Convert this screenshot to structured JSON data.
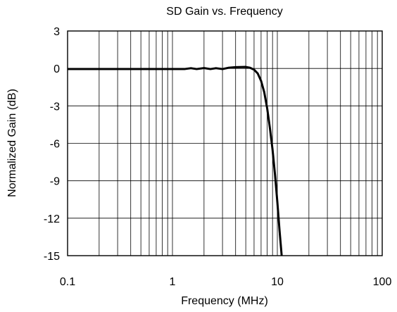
{
  "chart_data": {
    "type": "line",
    "title": "SD Gain vs. Frequency",
    "xlabel": "Frequency (MHz)",
    "ylabel": "Normalized Gain (dB)",
    "xscale": "log",
    "xlim": [
      0.1,
      100
    ],
    "ylim": [
      -15,
      3
    ],
    "grid": true,
    "x_ticks": [
      "0.1",
      "1",
      "10",
      "100"
    ],
    "y_ticks": [
      "3",
      "0",
      "-3",
      "-6",
      "-9",
      "-12",
      "-15"
    ],
    "series": [
      {
        "x": [
          0.1,
          0.2,
          0.5,
          1.0,
          1.3,
          1.5,
          1.7,
          2.0,
          2.3,
          2.6,
          3.0,
          3.4,
          4.0,
          5.0,
          5.5,
          6.0,
          6.5,
          7.0,
          7.5,
          8.0,
          8.5,
          9.0,
          9.5,
          10.0,
          10.5,
          11.0
        ],
        "y": [
          -0.05,
          -0.05,
          -0.05,
          -0.05,
          -0.05,
          0.02,
          -0.05,
          0.03,
          -0.05,
          0.02,
          -0.05,
          0.05,
          0.1,
          0.12,
          0.05,
          -0.1,
          -0.4,
          -1.0,
          -1.9,
          -3.2,
          -4.8,
          -6.5,
          -8.5,
          -10.7,
          -13.0,
          -15.0
        ]
      }
    ]
  }
}
